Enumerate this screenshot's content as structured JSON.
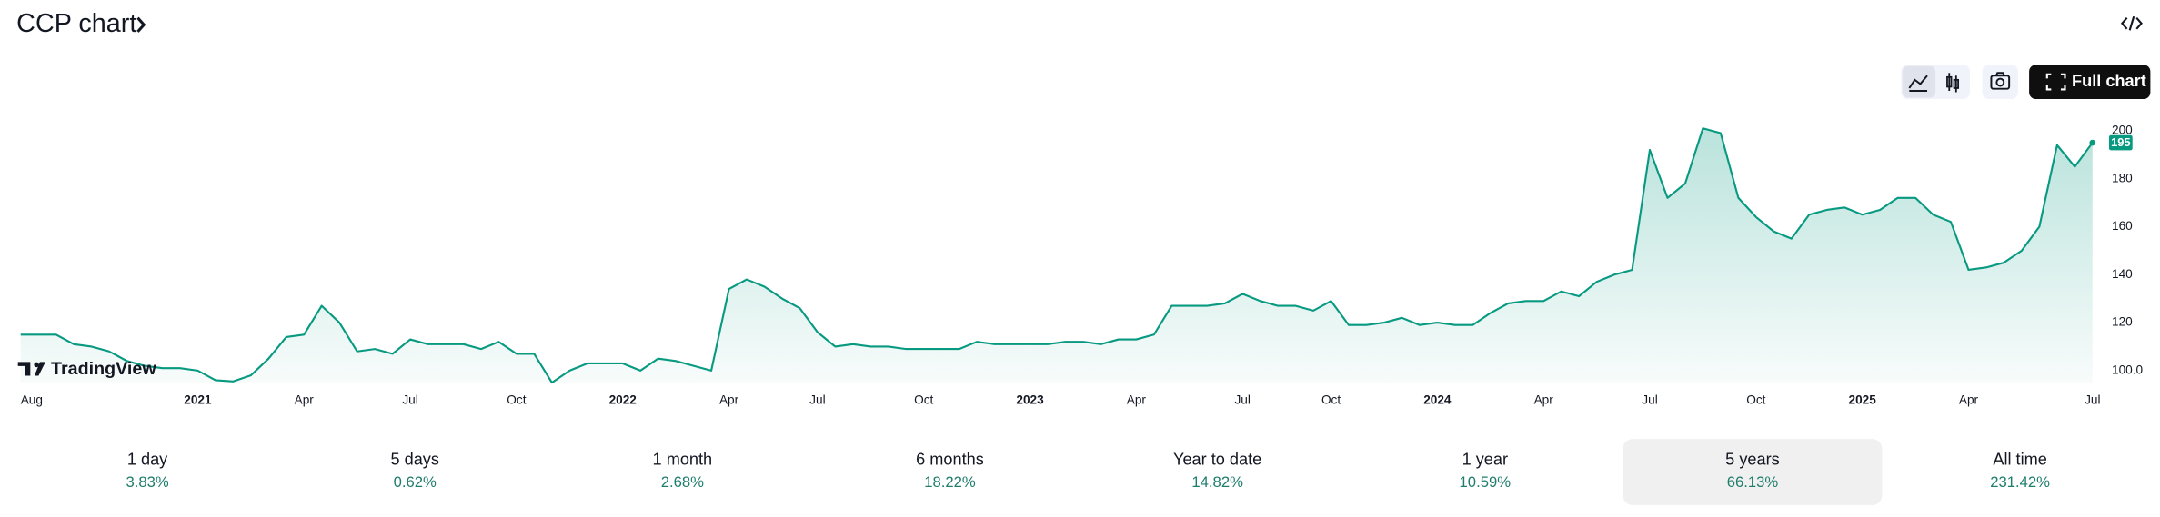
{
  "chart_data": {
    "type": "line",
    "title": "CCP chart",
    "watermark": "TradingView",
    "button_full_chart": "Full chart",
    "color": "#089981",
    "categories": [
      "Aug",
      null,
      null,
      null,
      null,
      null,
      null,
      null,
      null,
      null,
      "2021",
      null,
      null,
      null,
      null,
      null,
      "Apr",
      null,
      null,
      null,
      null,
      null,
      "Jul",
      null,
      null,
      null,
      null,
      null,
      "Oct",
      null,
      null,
      null,
      null,
      null,
      "2022",
      null,
      null,
      null,
      null,
      null,
      "Apr",
      null,
      null,
      null,
      null,
      "Jul",
      null,
      null,
      null,
      null,
      null,
      "Oct",
      null,
      null,
      null,
      null,
      null,
      "2023",
      null,
      null,
      null,
      null,
      null,
      "Apr",
      null,
      null,
      null,
      null,
      null,
      "Jul",
      null,
      null,
      null,
      null,
      "Oct",
      null,
      null,
      null,
      null,
      null,
      "2024",
      null,
      null,
      null,
      null,
      null,
      "Apr",
      null,
      null,
      null,
      null,
      null,
      "Jul",
      null,
      null,
      null,
      null,
      null,
      "Oct",
      null,
      null,
      null,
      null,
      null,
      "2025",
      null,
      null,
      null,
      null,
      null,
      "Apr",
      null,
      null,
      null,
      null,
      null,
      null,
      "Jul"
    ],
    "values": [
      115,
      115,
      115,
      111,
      110,
      108,
      104,
      102,
      101,
      101,
      100,
      96,
      95.5,
      98,
      105,
      114,
      115,
      127,
      120,
      108,
      109,
      107,
      113,
      111,
      111,
      111,
      109,
      112,
      107,
      107,
      95,
      100,
      103,
      103,
      103,
      100,
      105,
      104,
      102,
      100,
      134,
      138,
      135,
      130,
      126,
      116,
      110,
      111,
      110,
      110,
      109,
      109,
      109,
      109,
      112,
      111,
      111,
      111,
      111,
      112,
      112,
      111,
      113,
      113,
      115,
      127,
      127,
      127,
      128,
      132,
      129,
      127,
      127,
      125,
      129,
      119,
      119,
      120,
      122,
      119,
      120,
      119,
      119,
      124,
      128,
      129,
      129,
      133,
      131,
      137,
      140,
      142,
      192,
      172,
      178,
      201,
      199,
      172,
      164,
      158,
      155,
      165,
      167,
      168,
      165,
      167,
      172,
      172,
      165,
      162,
      142,
      143,
      145,
      150,
      160,
      194,
      185,
      195
    ],
    "last_price": 195,
    "ylim": [
      95,
      204
    ],
    "yticks": [
      {
        "value": 100,
        "label": "100.0"
      },
      120,
      140,
      160,
      180,
      200
    ],
    "grid": false
  },
  "periods": [
    {
      "label": "1 day",
      "change": "3.83%"
    },
    {
      "label": "5 days",
      "change": "0.62%"
    },
    {
      "label": "1 month",
      "change": "2.68%"
    },
    {
      "label": "6 months",
      "change": "18.22%"
    },
    {
      "label": "Year to date",
      "change": "14.82%"
    },
    {
      "label": "1 year",
      "change": "10.59%"
    },
    {
      "label": "5 years",
      "change": "66.13%",
      "selected": true
    },
    {
      "label": "All time",
      "change": "231.42%"
    }
  ]
}
